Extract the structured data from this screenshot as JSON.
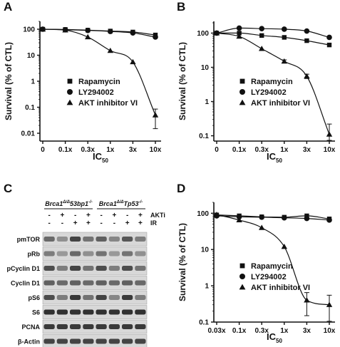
{
  "panels": {
    "A": "A",
    "B": "B",
    "C": "C",
    "D": "D"
  },
  "chart_data": [
    {
      "panel": "A",
      "type": "line",
      "ylabel": "Survival (% of CTL)",
      "xlabel_main": "IC",
      "xlabel_sub": "50",
      "yscale": "log",
      "ylim": [
        0.005,
        200
      ],
      "yticks": [
        0.01,
        0.1,
        1,
        10,
        100
      ],
      "yticklabels": [
        "0.01",
        "0.1",
        "1",
        "10",
        "100"
      ],
      "xticklabels": [
        "0",
        "0.1x",
        "0.3x",
        "1x",
        "3x",
        "10x"
      ],
      "x": [
        0,
        0.1,
        0.3,
        1,
        3,
        10
      ],
      "legend_position": "bottom-left",
      "series": [
        {
          "name": "Rapamycin",
          "marker": "square",
          "x": [
            0,
            0.1,
            0.3,
            1,
            3,
            10
          ],
          "values": [
            100,
            98,
            92,
            85,
            78,
            60
          ],
          "errors": [
            0,
            0,
            0,
            0,
            0,
            0
          ]
        },
        {
          "name": "LY294002",
          "marker": "circle",
          "x": [
            0,
            0.1,
            0.3,
            1,
            3,
            10
          ],
          "values": [
            100,
            95,
            90,
            82,
            72,
            50
          ],
          "errors": [
            0,
            0,
            0,
            0,
            0,
            0
          ]
        },
        {
          "name": "AKT inhibitor VI",
          "marker": "triangle",
          "x": [
            0,
            0.1,
            0.3,
            1,
            3,
            10
          ],
          "values": [
            100,
            92,
            50,
            15,
            5.5,
            0.05
          ],
          "errors": [
            0,
            0,
            0,
            0,
            0,
            0.035
          ]
        }
      ]
    },
    {
      "panel": "B",
      "type": "line",
      "ylabel": "Survival (% of CTL)",
      "xlabel_main": "IC",
      "xlabel_sub": "50",
      "yscale": "log",
      "ylim": [
        0.07,
        220
      ],
      "yticks": [
        0.1,
        1,
        10,
        100
      ],
      "yticklabels": [
        "0.1",
        "1",
        "10",
        "100"
      ],
      "xticklabels": [
        "0",
        "0.1x",
        "0.3x",
        "1x",
        "3x",
        "10x"
      ],
      "x": [
        0,
        0.1,
        0.3,
        1,
        3,
        10
      ],
      "legend_position": "bottom-left",
      "series": [
        {
          "name": "Rapamycin",
          "marker": "square",
          "x": [
            0,
            0.1,
            0.3,
            1,
            3,
            10
          ],
          "values": [
            100,
            100,
            85,
            75,
            60,
            45
          ],
          "errors": [
            0,
            0,
            0,
            0,
            0,
            0
          ]
        },
        {
          "name": "LY294002",
          "marker": "circle",
          "x": [
            0,
            0.1,
            0.3,
            1,
            3,
            10
          ],
          "values": [
            100,
            140,
            135,
            130,
            115,
            75
          ],
          "errors": [
            0,
            0,
            0,
            0,
            0,
            0
          ]
        },
        {
          "name": "AKT inhibitor VI",
          "marker": "triangle",
          "x": [
            0,
            0.1,
            0.3,
            1,
            3,
            10
          ],
          "values": [
            100,
            80,
            35,
            15,
            5.5,
            0.11
          ],
          "errors": [
            0,
            0,
            0,
            1.5,
            0.8,
            0.11
          ]
        }
      ]
    },
    {
      "panel": "D",
      "type": "line",
      "ylabel": "Survival (% of CTL)",
      "xlabel_main": "IC",
      "xlabel_sub": "50",
      "yscale": "log",
      "ylim": [
        0.1,
        200
      ],
      "yticks": [
        0.1,
        1,
        10,
        100
      ],
      "yticklabels": [
        "0.1",
        "1",
        "10",
        "100"
      ],
      "xticklabels": [
        "0.03x",
        "0.1x",
        "0.3x",
        "1x",
        "3x",
        "10x"
      ],
      "x": [
        0.03,
        0.1,
        0.3,
        1,
        3,
        10
      ],
      "legend_position": "bottom-left",
      "series": [
        {
          "name": "Rapamycin",
          "marker": "square",
          "x": [
            0.03,
            0.1,
            0.3,
            1,
            3,
            10
          ],
          "values": [
            90,
            85,
            80,
            78,
            85,
            70
          ],
          "errors": [
            0,
            0,
            0,
            0,
            0,
            0
          ]
        },
        {
          "name": "LY294002",
          "marker": "circle",
          "x": [
            0.03,
            0.1,
            0.3,
            1,
            3,
            10
          ],
          "values": [
            85,
            80,
            78,
            75,
            72,
            65
          ],
          "errors": [
            0,
            0,
            0,
            0,
            0,
            0
          ]
        },
        {
          "name": "AKT inhibitor VI",
          "marker": "triangle",
          "x": [
            0.03,
            0.1,
            0.3,
            1,
            3,
            10
          ],
          "values": [
            92,
            65,
            40,
            12,
            0.4,
            0.3
          ],
          "errors": [
            0,
            0,
            0,
            0,
            0.25,
            0.25
          ]
        }
      ]
    }
  ],
  "western_blot": {
    "group1_label": "Brca1",
    "group1_sup": "Δ/Δ",
    "group1_rest": "53bp1",
    "group1_sup2": "-/-",
    "group2_label": "Brca1",
    "group2_sup": "Δ/Δ",
    "group2_rest": "Tp53",
    "group2_sup2": "-/-",
    "treatment_rows": [
      {
        "label": "AKTi",
        "signs": [
          "-",
          "+",
          "-",
          "+",
          "-",
          "+",
          "-",
          "+"
        ]
      },
      {
        "label": "IR",
        "signs": [
          "-",
          "-",
          "+",
          "+",
          "-",
          "-",
          "+",
          "+"
        ]
      }
    ],
    "bands": [
      {
        "label": "pmTOR",
        "intensity": [
          0.55,
          0.35,
          0.75,
          0.5,
          0.6,
          0.4,
          0.65,
          0.45
        ]
      },
      {
        "label": "pRb",
        "intensity": [
          0.45,
          0.3,
          0.55,
          0.35,
          0.5,
          0.3,
          0.5,
          0.35
        ]
      },
      {
        "label": "pCyclin D1",
        "intensity": [
          0.7,
          0.45,
          0.75,
          0.5,
          0.7,
          0.45,
          0.7,
          0.5
        ]
      },
      {
        "label": "Cyclin D1",
        "intensity": [
          0.6,
          0.55,
          0.6,
          0.55,
          0.6,
          0.55,
          0.6,
          0.55
        ]
      },
      {
        "label": "pS6",
        "intensity": [
          0.7,
          0.45,
          0.8,
          0.5,
          0.75,
          0.4,
          0.8,
          0.45
        ]
      },
      {
        "label": "S6",
        "intensity": [
          0.85,
          0.85,
          0.85,
          0.85,
          0.85,
          0.85,
          0.85,
          0.85
        ]
      },
      {
        "label": "PCNA",
        "intensity": [
          0.8,
          0.8,
          0.8,
          0.8,
          0.8,
          0.8,
          0.8,
          0.8
        ]
      },
      {
        "label": "β-Actin",
        "intensity": [
          0.75,
          0.75,
          0.75,
          0.75,
          0.75,
          0.75,
          0.75,
          0.75
        ]
      }
    ]
  },
  "colors": {
    "ink": "#111111",
    "blot_bg": "#d8d8d8"
  }
}
